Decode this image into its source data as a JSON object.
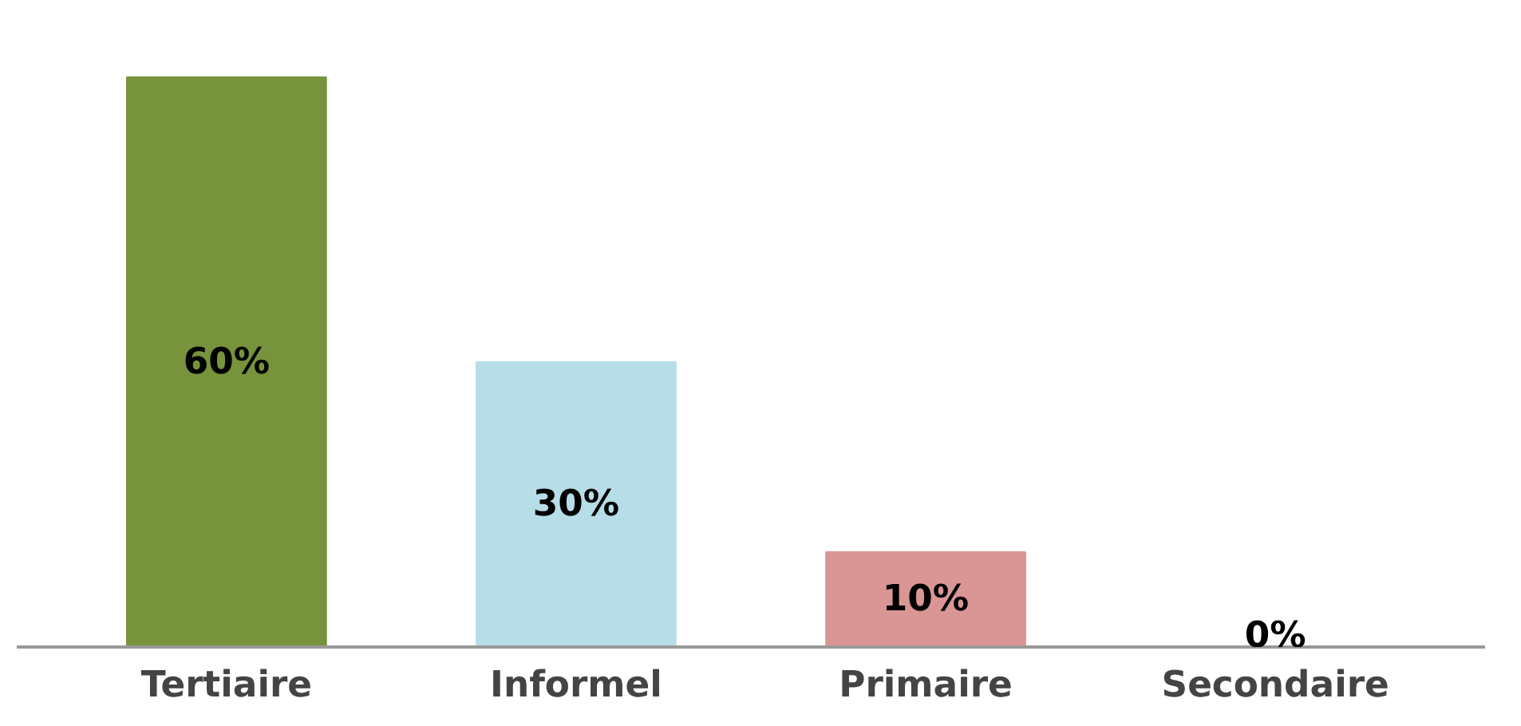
{
  "chart_data": {
    "type": "bar",
    "categories": [
      "Tertiaire",
      "Informel",
      "Primaire",
      "Secondaire"
    ],
    "values": [
      60,
      30,
      10,
      0
    ],
    "colors": [
      "#77933c",
      "#b7dee8",
      "#d99694",
      "#990000"
    ],
    "value_labels": [
      "60%",
      "30%",
      "10%",
      "0%"
    ]
  }
}
